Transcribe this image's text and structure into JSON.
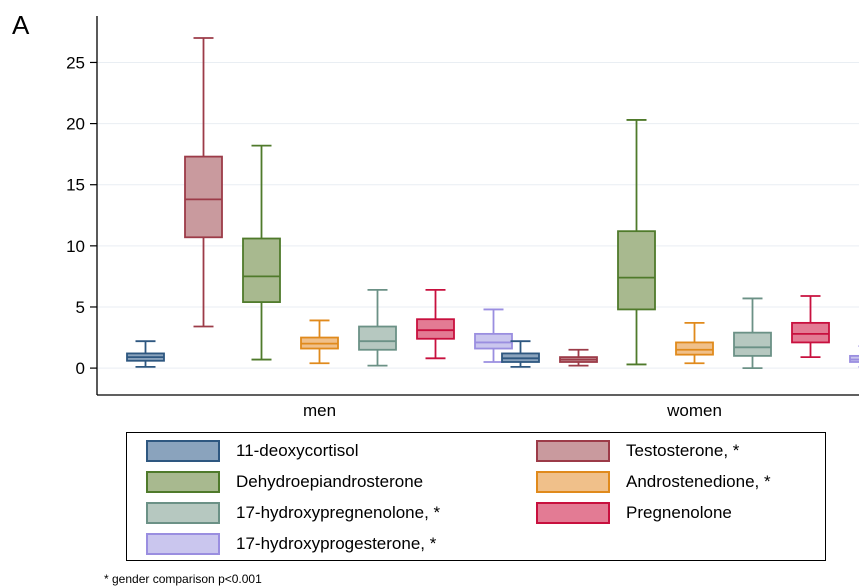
{
  "panel_label": "A",
  "footnote": "* gender comparison p<0.001",
  "chart_data": {
    "type": "box",
    "title": "",
    "xlabel": "",
    "ylabel": "",
    "categories": [
      "men",
      "women"
    ],
    "yticks": [
      0,
      5,
      10,
      15,
      20,
      25
    ],
    "ylim": [
      -2.2,
      28.8
    ],
    "grid": true,
    "legend_position": "bottom",
    "series": [
      {
        "name": "11-deoxycortisol",
        "fill": "#8aa3bd",
        "stroke": "#2e5780",
        "boxes": [
          {
            "min": 0.1,
            "q1": 0.6,
            "median": 0.9,
            "q3": 1.2,
            "max": 2.2
          },
          {
            "min": 0.1,
            "q1": 0.5,
            "median": 0.8,
            "q3": 1.2,
            "max": 2.2
          }
        ]
      },
      {
        "name": "Testosterone, *",
        "fill": "#c99a9e",
        "stroke": "#9c3b48",
        "boxes": [
          {
            "min": 3.4,
            "q1": 10.7,
            "median": 13.8,
            "q3": 17.3,
            "max": 27.0
          },
          {
            "min": 0.2,
            "q1": 0.5,
            "median": 0.7,
            "q3": 0.9,
            "max": 1.5
          }
        ]
      },
      {
        "name": "Dehydroepiandrosterone",
        "fill": "#a8b98f",
        "stroke": "#4f7a2b",
        "boxes": [
          {
            "min": 0.7,
            "q1": 5.4,
            "median": 7.5,
            "q3": 10.6,
            "max": 18.2
          },
          {
            "min": 0.3,
            "q1": 4.8,
            "median": 7.4,
            "q3": 11.2,
            "max": 20.3
          }
        ]
      },
      {
        "name": "Androstenedione, *",
        "fill": "#f0c08a",
        "stroke": "#e08a1c",
        "boxes": [
          {
            "min": 0.4,
            "q1": 1.6,
            "median": 2.0,
            "q3": 2.5,
            "max": 3.9
          },
          {
            "min": 0.4,
            "q1": 1.1,
            "median": 1.5,
            "q3": 2.1,
            "max": 3.7
          }
        ]
      },
      {
        "name": "17-hydroxypregnenolone, *",
        "fill": "#b6c8c0",
        "stroke": "#6b9186",
        "boxes": [
          {
            "min": 0.2,
            "q1": 1.5,
            "median": 2.2,
            "q3": 3.4,
            "max": 6.4
          },
          {
            "min": 0.0,
            "q1": 1.0,
            "median": 1.7,
            "q3": 2.9,
            "max": 5.7
          }
        ]
      },
      {
        "name": "Pregnenolone",
        "fill": "#e37b94",
        "stroke": "#c8103e",
        "boxes": [
          {
            "min": 0.8,
            "q1": 2.4,
            "median": 3.1,
            "q3": 4.0,
            "max": 6.4
          },
          {
            "min": 0.9,
            "q1": 2.1,
            "median": 2.8,
            "q3": 3.7,
            "max": 5.9
          }
        ]
      },
      {
        "name": "17-hydroxyprogesterone, *",
        "fill": "#cac6ee",
        "stroke": "#9a8ee0",
        "boxes": [
          {
            "min": 0.5,
            "q1": 1.6,
            "median": 2.1,
            "q3": 2.8,
            "max": 4.8
          },
          {
            "min": 0.1,
            "q1": 0.5,
            "median": 0.7,
            "q3": 1.0,
            "max": 1.8
          }
        ]
      }
    ]
  }
}
